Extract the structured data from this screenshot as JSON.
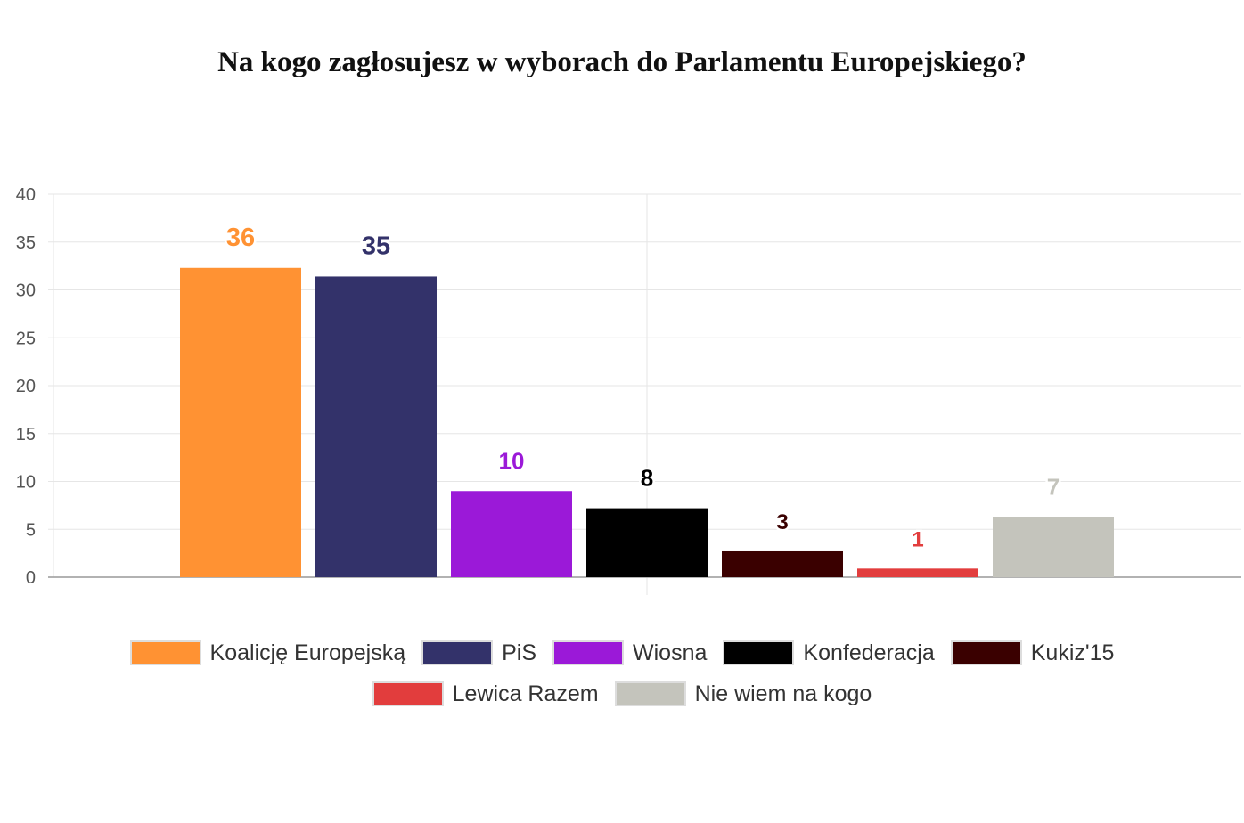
{
  "title": "Na kogo zagłosujesz w wyborach do Parlamentu Europejskiego?",
  "chart_data": {
    "type": "bar",
    "title": "Na kogo zagłosujesz w wyborach do Parlamentu Europejskiego?",
    "xlabel": "",
    "ylabel": "",
    "ylim": [
      0,
      40
    ],
    "yticks": [
      "0",
      "5",
      "10",
      "15",
      "20",
      "25",
      "30",
      "35",
      "40"
    ],
    "grid": true,
    "legend_position": "bottom",
    "series": [
      {
        "name": "Koalicję Europejską",
        "value": 32.3,
        "label": "36",
        "color": "#ff9233"
      },
      {
        "name": "PiS",
        "value": 31.4,
        "label": "35",
        "color": "#33326a"
      },
      {
        "name": "Wiosna",
        "value": 9,
        "label": "10",
        "color": "#9b19d8"
      },
      {
        "name": "Konfederacja",
        "value": 7.2,
        "label": "8",
        "color": "#000000"
      },
      {
        "name": "Kukiz'15",
        "value": 2.7,
        "label": "3",
        "color": "#3a0000"
      },
      {
        "name": "Lewica Razem",
        "value": 0.9,
        "label": "1",
        "color": "#e23d3d"
      },
      {
        "name": "Nie wiem na kogo",
        "value": 6.3,
        "label": "7",
        "color": "#c4c4bc"
      }
    ]
  }
}
